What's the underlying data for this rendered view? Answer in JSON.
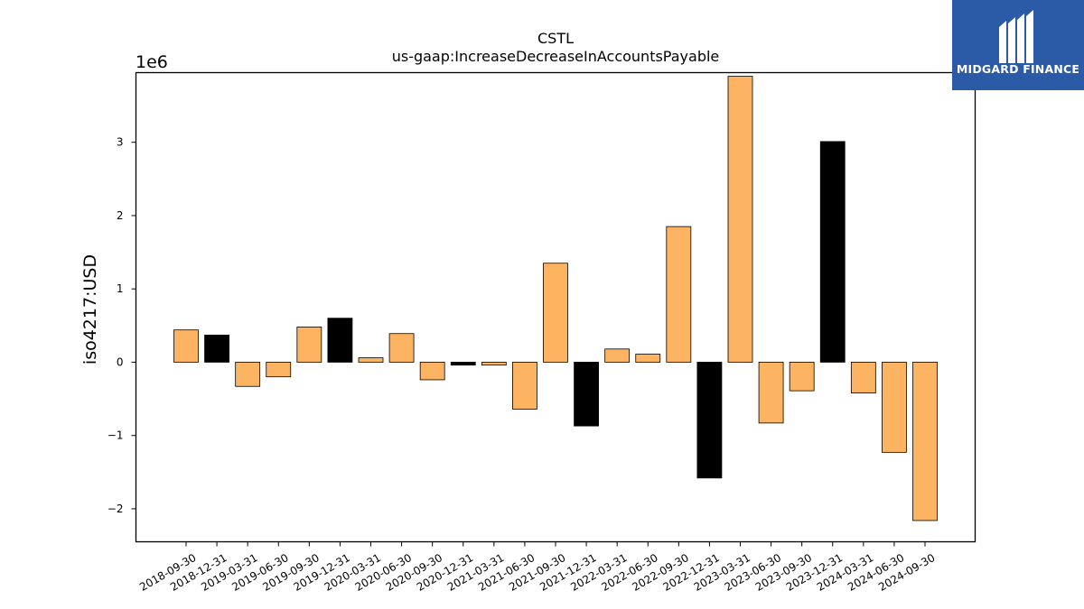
{
  "brand": {
    "name": "MIDGARD FINANCE",
    "color": "#2b5aa6"
  },
  "colors": {
    "positive_bar": "#fdb462",
    "q4_bar": "#000000",
    "bar_edge": "#000000"
  },
  "chart_data": {
    "type": "bar",
    "title": "CSTL",
    "subtitle": "us-gaap:IncreaseDecreaseInAccountsPayable",
    "xlabel": "",
    "ylabel": "iso4217:USD",
    "scale_label": "1e6",
    "ylim": [
      -2.45,
      3.95
    ],
    "yticks": [
      -2,
      -1,
      0,
      1,
      2,
      3
    ],
    "ytick_labels": [
      "−2",
      "−1",
      "0",
      "1",
      "2",
      "3"
    ],
    "grid": false,
    "legend": "none",
    "categories": [
      "2018-09-30",
      "2018-12-31",
      "2019-03-31",
      "2019-06-30",
      "2019-09-30",
      "2019-12-31",
      "2020-03-31",
      "2020-06-30",
      "2020-09-30",
      "2020-12-31",
      "2021-03-31",
      "2021-06-30",
      "2021-09-30",
      "2021-12-31",
      "2022-03-31",
      "2022-06-30",
      "2022-09-30",
      "2022-12-31",
      "2023-03-31",
      "2023-06-30",
      "2023-09-30",
      "2023-12-31",
      "2024-03-31",
      "2024-06-30",
      "2024-09-30"
    ],
    "values": [
      0.44,
      0.37,
      -0.33,
      -0.2,
      0.48,
      0.6,
      0.06,
      0.39,
      -0.24,
      -0.04,
      -0.04,
      -0.64,
      1.35,
      -0.87,
      0.18,
      0.11,
      1.85,
      -1.58,
      3.9,
      -0.83,
      -0.39,
      3.01,
      -0.42,
      -1.23,
      -2.16
    ],
    "bar_colors": [
      "#fdb462",
      "#000000",
      "#fdb462",
      "#fdb462",
      "#fdb462",
      "#000000",
      "#fdb462",
      "#fdb462",
      "#fdb462",
      "#000000",
      "#fdb462",
      "#fdb462",
      "#fdb462",
      "#000000",
      "#fdb462",
      "#fdb462",
      "#fdb462",
      "#000000",
      "#fdb462",
      "#fdb462",
      "#fdb462",
      "#000000",
      "#fdb462",
      "#fdb462",
      "#fdb462"
    ]
  }
}
